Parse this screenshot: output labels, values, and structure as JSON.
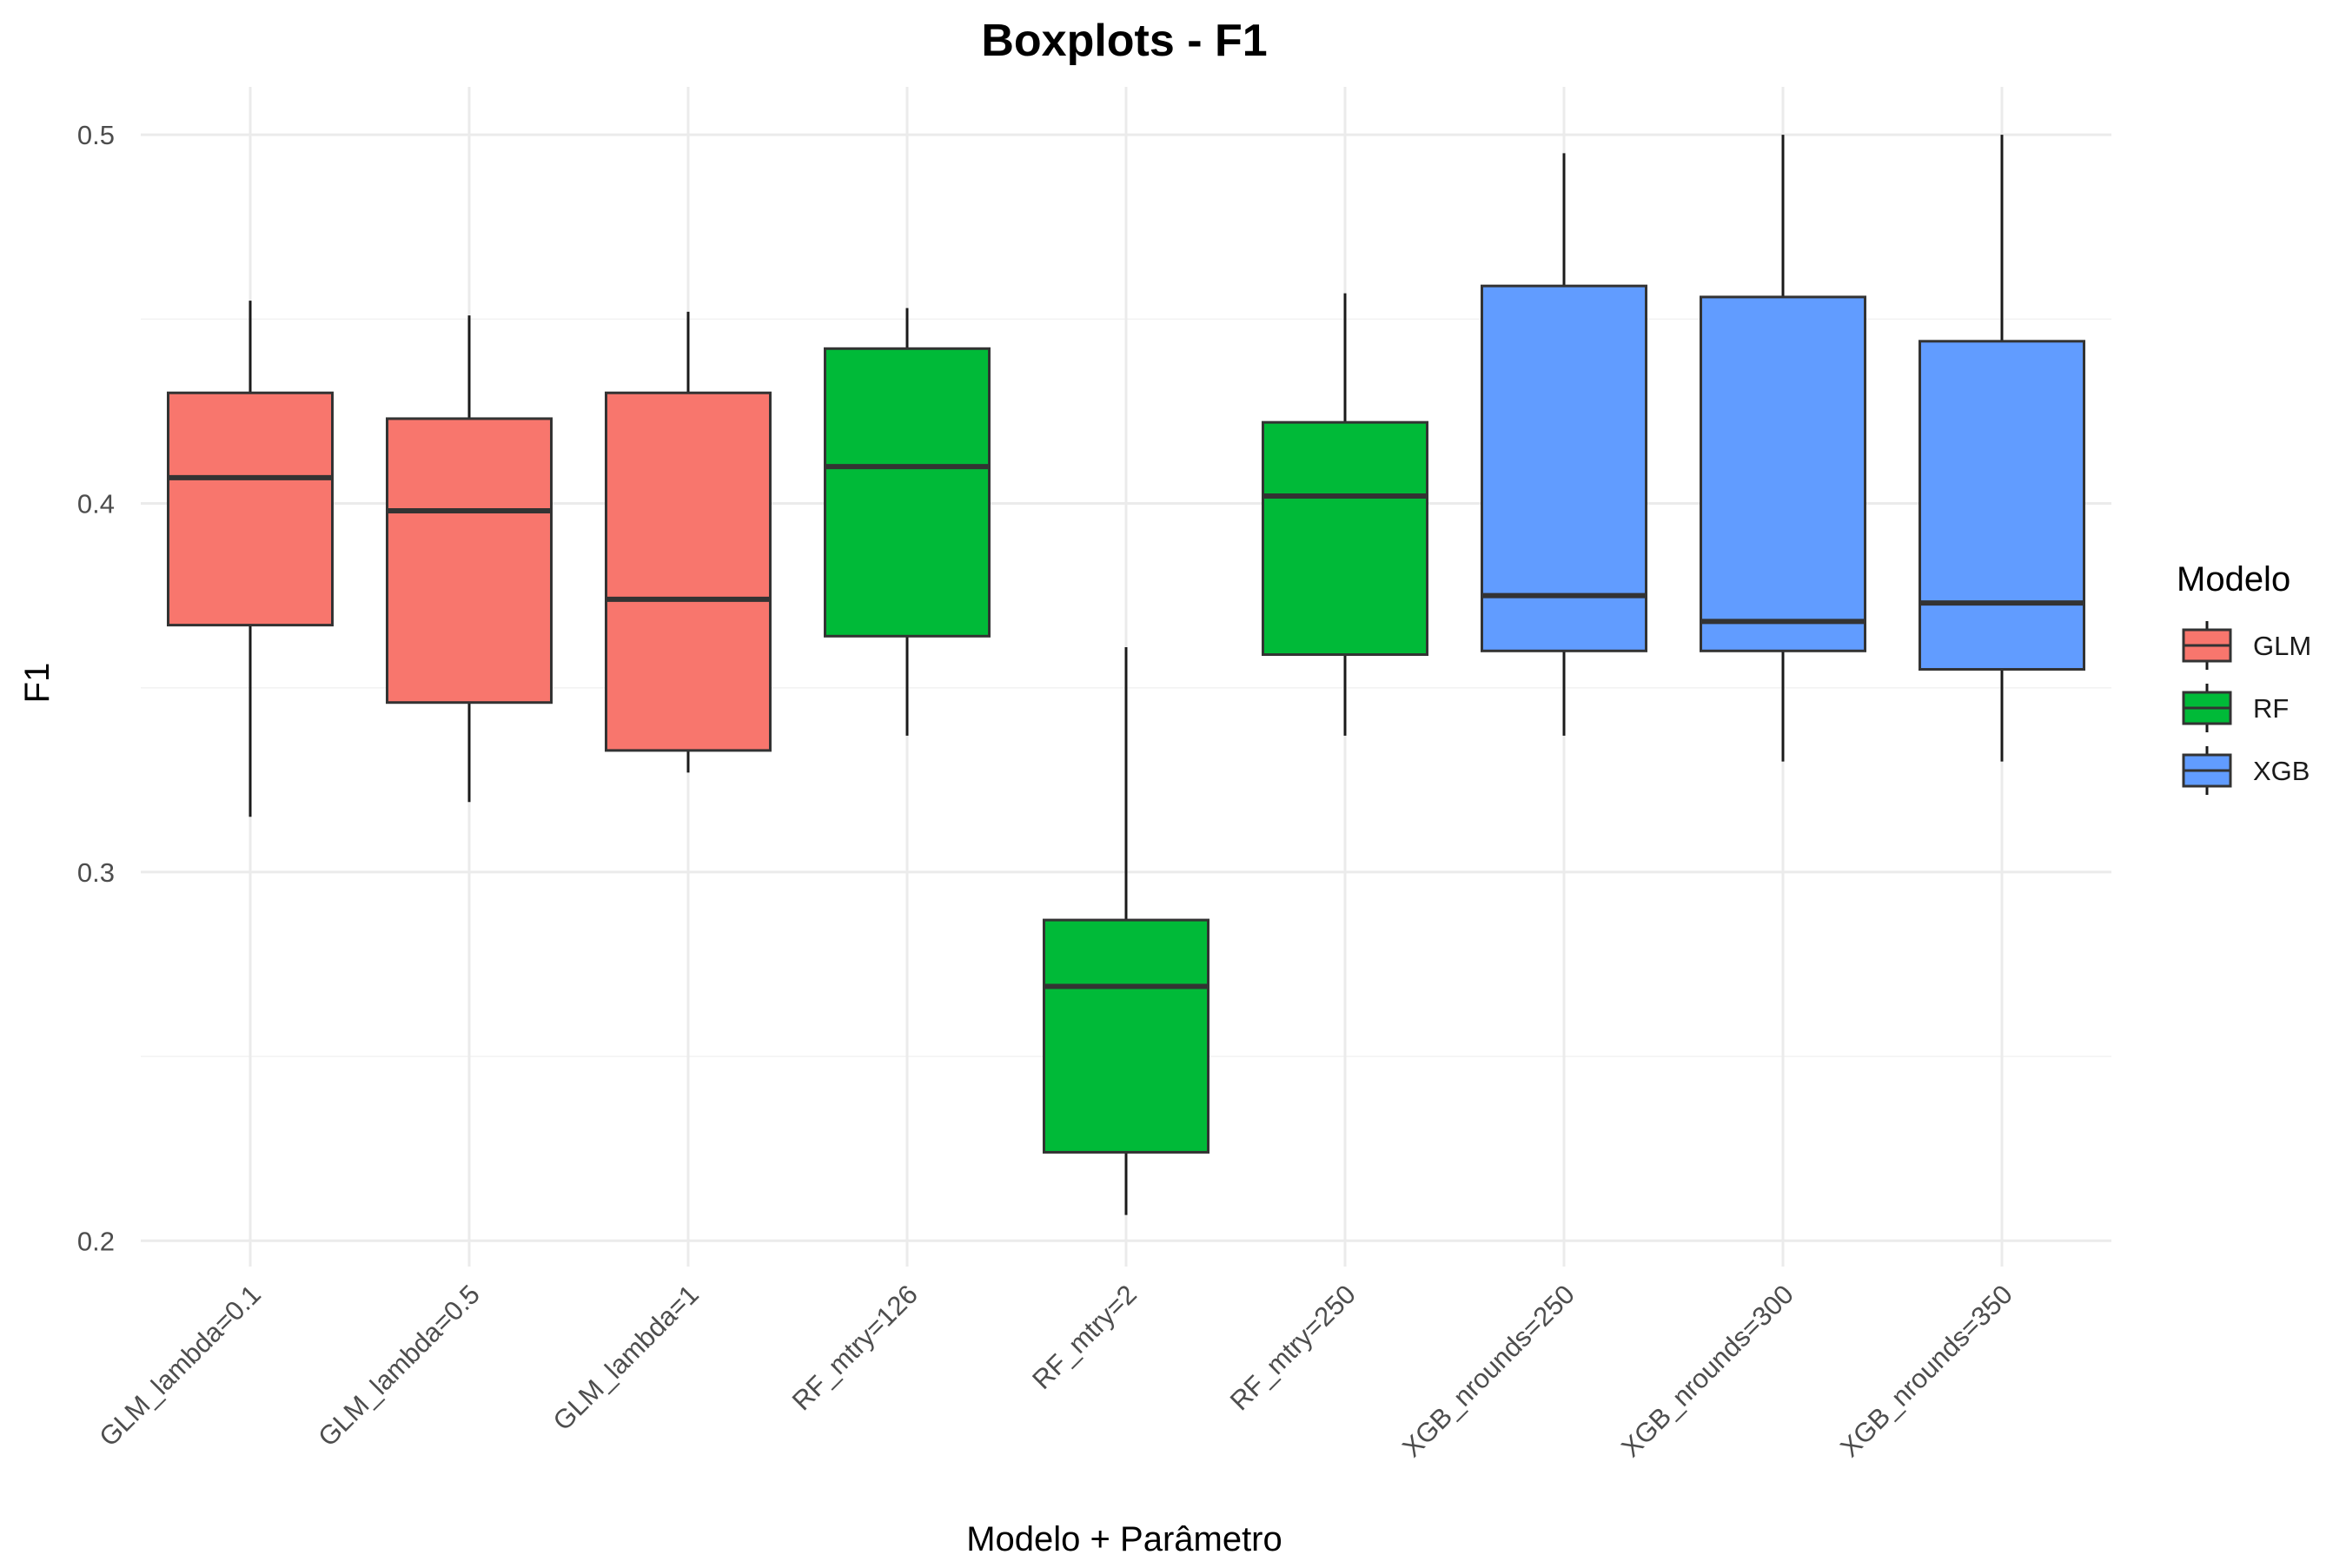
{
  "chart_data": {
    "type": "boxplot",
    "title": "Boxplots - F1",
    "xlabel": "Modelo + Parâmetro",
    "ylabel": "F1",
    "ylim": [
      0.193,
      0.513
    ],
    "yticks": [
      "0.2",
      "0.3",
      "0.4",
      "0.5"
    ],
    "grid": true,
    "legend": {
      "title": "Modelo",
      "placement": "right",
      "entries": [
        {
          "name": "GLM",
          "color": "#F8766D"
        },
        {
          "name": "RF",
          "color": "#00BA38"
        },
        {
          "name": "XGB",
          "color": "#619CFF"
        }
      ]
    },
    "categories": [
      "GLM_lambda=0.1",
      "GLM_lambda=0.5",
      "GLM_lambda=1",
      "RF_mtry=126",
      "RF_mtry=2",
      "RF_mtry=250",
      "XGB_nrounds=250",
      "XGB_nrounds=300",
      "XGB_nrounds=350"
    ],
    "boxes": [
      {
        "category": "GLM_lambda=0.1",
        "group": "GLM",
        "min": 0.315,
        "q1": 0.367,
        "median": 0.407,
        "q3": 0.43,
        "max": 0.455
      },
      {
        "category": "GLM_lambda=0.5",
        "group": "GLM",
        "min": 0.319,
        "q1": 0.346,
        "median": 0.398,
        "q3": 0.423,
        "max": 0.451
      },
      {
        "category": "GLM_lambda=1",
        "group": "GLM",
        "min": 0.327,
        "q1": 0.333,
        "median": 0.374,
        "q3": 0.43,
        "max": 0.452
      },
      {
        "category": "RF_mtry=126",
        "group": "RF",
        "min": 0.337,
        "q1": 0.364,
        "median": 0.41,
        "q3": 0.442,
        "max": 0.453
      },
      {
        "category": "RF_mtry=2",
        "group": "RF",
        "min": 0.207,
        "q1": 0.224,
        "median": 0.269,
        "q3": 0.287,
        "max": 0.361
      },
      {
        "category": "RF_mtry=250",
        "group": "RF",
        "min": 0.337,
        "q1": 0.359,
        "median": 0.402,
        "q3": 0.422,
        "max": 0.457
      },
      {
        "category": "XGB_nrounds=250",
        "group": "XGB",
        "min": 0.337,
        "q1": 0.36,
        "median": 0.375,
        "q3": 0.459,
        "max": 0.495
      },
      {
        "category": "XGB_nrounds=300",
        "group": "XGB",
        "min": 0.33,
        "q1": 0.36,
        "median": 0.368,
        "q3": 0.456,
        "max": 0.5
      },
      {
        "category": "XGB_nrounds=350",
        "group": "XGB",
        "min": 0.33,
        "q1": 0.355,
        "median": 0.373,
        "q3": 0.444,
        "max": 0.5
      }
    ]
  }
}
